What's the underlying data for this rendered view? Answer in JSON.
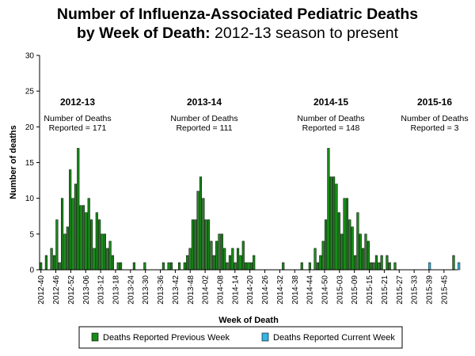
{
  "title": {
    "line1": "Number of Influenza-Associated Pediatric Deaths",
    "line2_bold": "by Week of Death:",
    "line2_rest": " 2012-13 season to present"
  },
  "chart_data": {
    "type": "bar",
    "title": "Number of Influenza-Associated Pediatric Deaths by Week of Death: 2012-13 season to present",
    "xlabel": "Week of Death",
    "ylabel": "Number of deaths",
    "ylim": [
      0,
      30
    ],
    "yticks": [
      0,
      5,
      10,
      15,
      20,
      25,
      30
    ],
    "grid": false,
    "legend_position": "bottom",
    "colors": {
      "previous": "#1a8a1a",
      "current": "#33b5e5"
    },
    "x_tick_labels": [
      "2012-40",
      "2012-46",
      "2012-52",
      "2013-06",
      "2013-12",
      "2013-18",
      "2013-24",
      "2013-30",
      "2013-36",
      "2013-42",
      "2013-48",
      "2014-02",
      "2014-08",
      "2014-14",
      "2014-20",
      "2014-26",
      "2014-32",
      "2014-38",
      "2014-44",
      "2014-50",
      "2015-03",
      "2015-09",
      "2015-15",
      "2015-21",
      "2015-27",
      "2015-33",
      "2015-39",
      "2015-45"
    ],
    "series": [
      {
        "name": "Deaths Reported Previous Week",
        "values": [
          1,
          0,
          2,
          0,
          3,
          2,
          7,
          1,
          10,
          5,
          6,
          14,
          10,
          12,
          17,
          9,
          9,
          8,
          10,
          7,
          3,
          8,
          7,
          5,
          5,
          3,
          4,
          2,
          0,
          1,
          1,
          0,
          0,
          0,
          0,
          1,
          0,
          0,
          0,
          1,
          0,
          0,
          0,
          0,
          0,
          0,
          1,
          0,
          1,
          1,
          0,
          0,
          1,
          0,
          1,
          2,
          3,
          7,
          7,
          11,
          13,
          10,
          7,
          7,
          4,
          2,
          4,
          5,
          5,
          3,
          1,
          2,
          3,
          1,
          3,
          2,
          4,
          1,
          1,
          1,
          2,
          0,
          0,
          0,
          0,
          0,
          0,
          0,
          0,
          0,
          0,
          1,
          0,
          0,
          0,
          0,
          0,
          0,
          1,
          0,
          0,
          1,
          0,
          3,
          1,
          2,
          4,
          7,
          17,
          13,
          13,
          12,
          8,
          5,
          10,
          10,
          7,
          6,
          2,
          8,
          5,
          3,
          5,
          4,
          1,
          1,
          2,
          1,
          2,
          0,
          2,
          1,
          0,
          1,
          0,
          0,
          0,
          0,
          0,
          0,
          0,
          0,
          0,
          0,
          0,
          0,
          0,
          0,
          0,
          0,
          0,
          0,
          0,
          0,
          0,
          2,
          0
        ]
      },
      {
        "name": "Deaths Reported Current Week",
        "values": [
          0,
          0,
          0,
          0,
          0,
          0,
          0,
          0,
          0,
          0,
          0,
          0,
          0,
          0,
          0,
          0,
          0,
          0,
          0,
          0,
          0,
          0,
          0,
          0,
          0,
          0,
          0,
          0,
          0,
          0,
          0,
          0,
          0,
          0,
          0,
          0,
          0,
          0,
          0,
          0,
          0,
          0,
          0,
          0,
          0,
          0,
          0,
          0,
          0,
          0,
          0,
          0,
          0,
          0,
          0,
          0,
          0,
          0,
          0,
          0,
          0,
          0,
          0,
          0,
          0,
          0,
          0,
          0,
          0,
          0,
          0,
          0,
          0,
          0,
          0,
          0,
          0,
          0,
          0,
          0,
          0,
          0,
          0,
          0,
          0,
          0,
          0,
          0,
          0,
          0,
          0,
          0,
          0,
          0,
          0,
          0,
          0,
          0,
          0,
          0,
          0,
          0,
          0,
          0,
          0,
          0,
          0,
          0,
          0,
          0,
          0,
          0,
          0,
          0,
          0,
          0,
          0,
          0,
          0,
          0,
          0,
          0,
          0,
          0,
          0,
          0,
          0,
          0,
          0,
          0,
          0,
          0,
          0,
          0,
          0,
          0,
          0,
          0,
          0,
          0,
          0,
          0,
          0,
          0,
          0,
          0,
          1,
          0,
          0,
          0,
          0,
          0,
          0,
          0,
          0,
          0,
          0,
          1
        ]
      }
    ],
    "annotations": [
      {
        "season": "2012-13",
        "line1": "Number of Deaths",
        "line2": "Reported = 171"
      },
      {
        "season": "2013-14",
        "line1": "Number of Deaths",
        "line2": "Reported = 111"
      },
      {
        "season": "2014-15",
        "line1": "Number of Deaths",
        "line2": "Reported = 148"
      },
      {
        "season": "2015-16",
        "line1": "Number of Deaths",
        "line2": "Reported = 3"
      }
    ]
  }
}
